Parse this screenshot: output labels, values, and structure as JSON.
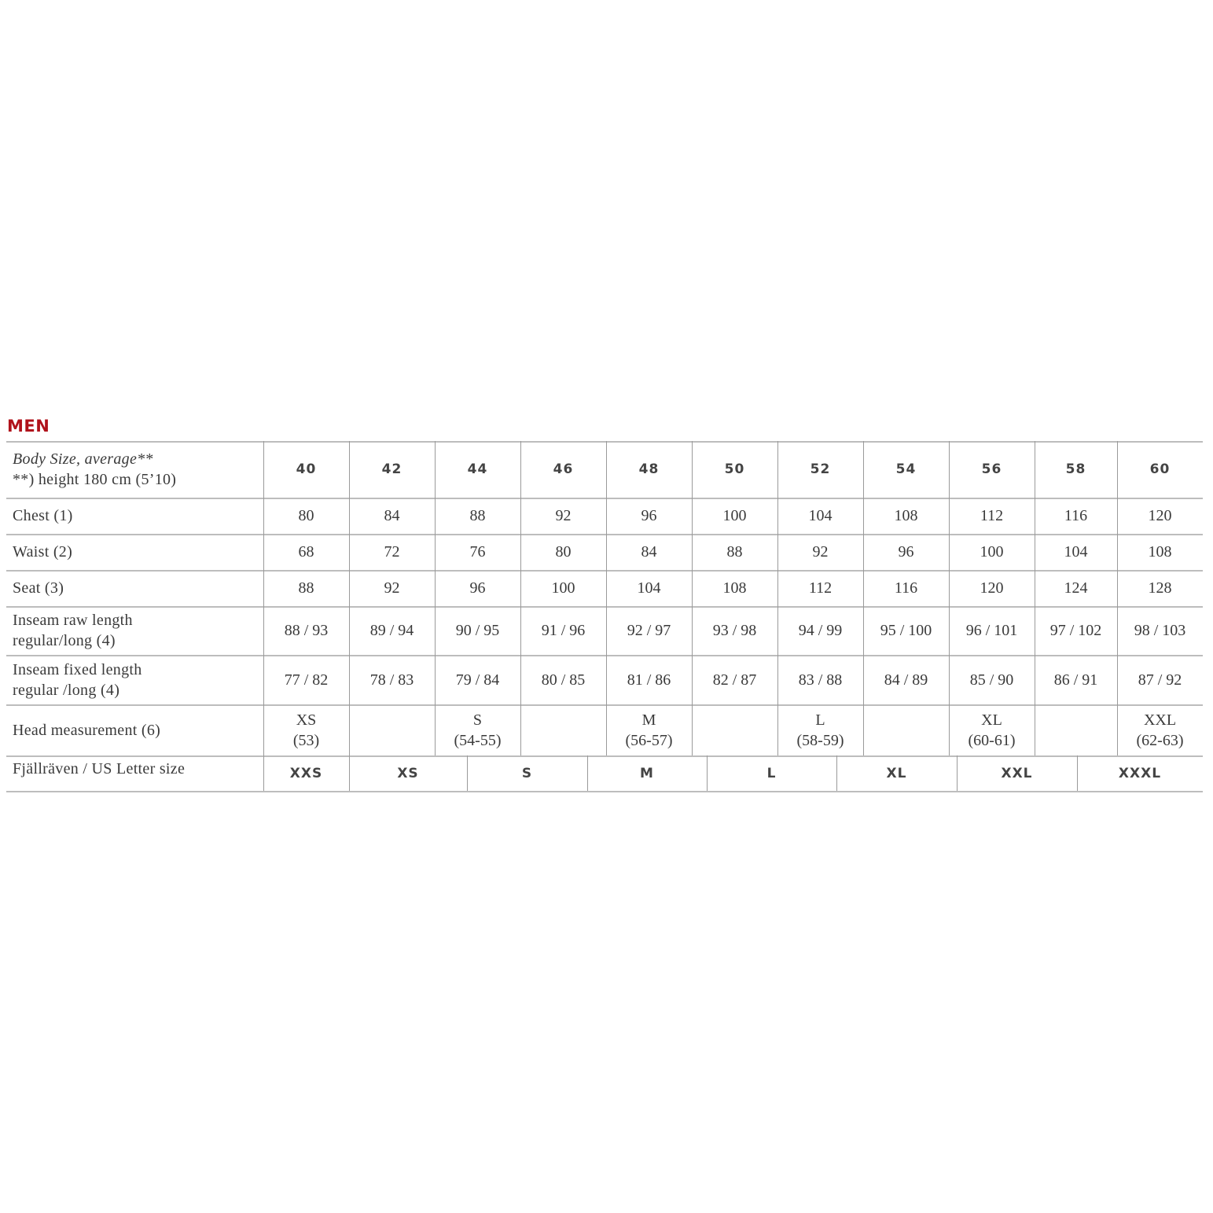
{
  "title": "MEN",
  "header": {
    "label_line1": "Body Size, average**",
    "label_line2": "**) height 180 cm (5’10)",
    "sizes": [
      "40",
      "42",
      "44",
      "46",
      "48",
      "50",
      "52",
      "54",
      "56",
      "58",
      "60"
    ]
  },
  "rows": [
    {
      "label": [
        "Chest (1)"
      ],
      "values": [
        "80",
        "84",
        "88",
        "92",
        "96",
        "100",
        "104",
        "108",
        "112",
        "116",
        "120"
      ]
    },
    {
      "label": [
        "Waist (2)"
      ],
      "values": [
        "68",
        "72",
        "76",
        "80",
        "84",
        "88",
        "92",
        "96",
        "100",
        "104",
        "108"
      ]
    },
    {
      "label": [
        "Seat (3)"
      ],
      "values": [
        "88",
        "92",
        "96",
        "100",
        "104",
        "108",
        "112",
        "116",
        "120",
        "124",
        "128"
      ]
    },
    {
      "label": [
        "Inseam raw length",
        "regular/long (4)"
      ],
      "values": [
        "88 / 93",
        "89 / 94",
        "90 / 95",
        "91 / 96",
        "92 / 97",
        "93 / 98",
        "94 / 99",
        "95 / 100",
        "96 / 101",
        "97 / 102",
        "98 / 103"
      ]
    },
    {
      "label": [
        "Inseam fixed length",
        "regular /long (4)"
      ],
      "values": [
        "77 / 82",
        "78 / 83",
        "79 / 84",
        "80 / 85",
        "81 / 86",
        "82 / 87",
        "83 / 88",
        "84 / 89",
        "85 / 90",
        "86 / 91",
        "87 / 92"
      ]
    },
    {
      "label": [
        "Head measurement (6)"
      ],
      "values": [
        "XS\n(53)",
        "",
        "S\n(54-55)",
        "",
        "M\n(56-57)",
        "",
        "L\n(58-59)",
        "",
        "XL\n(60-61)",
        "",
        "XXL\n(62-63)"
      ]
    }
  ],
  "letter_row": {
    "label": "Fjällräven / US Letter size",
    "values": [
      "XXS",
      "XS",
      "S",
      "M",
      "L",
      "XL",
      "XXL",
      "XXXL"
    ]
  },
  "colors": {
    "title": "#b0121b",
    "text": "#3a3a3a",
    "lines": "#bdbdbd"
  }
}
